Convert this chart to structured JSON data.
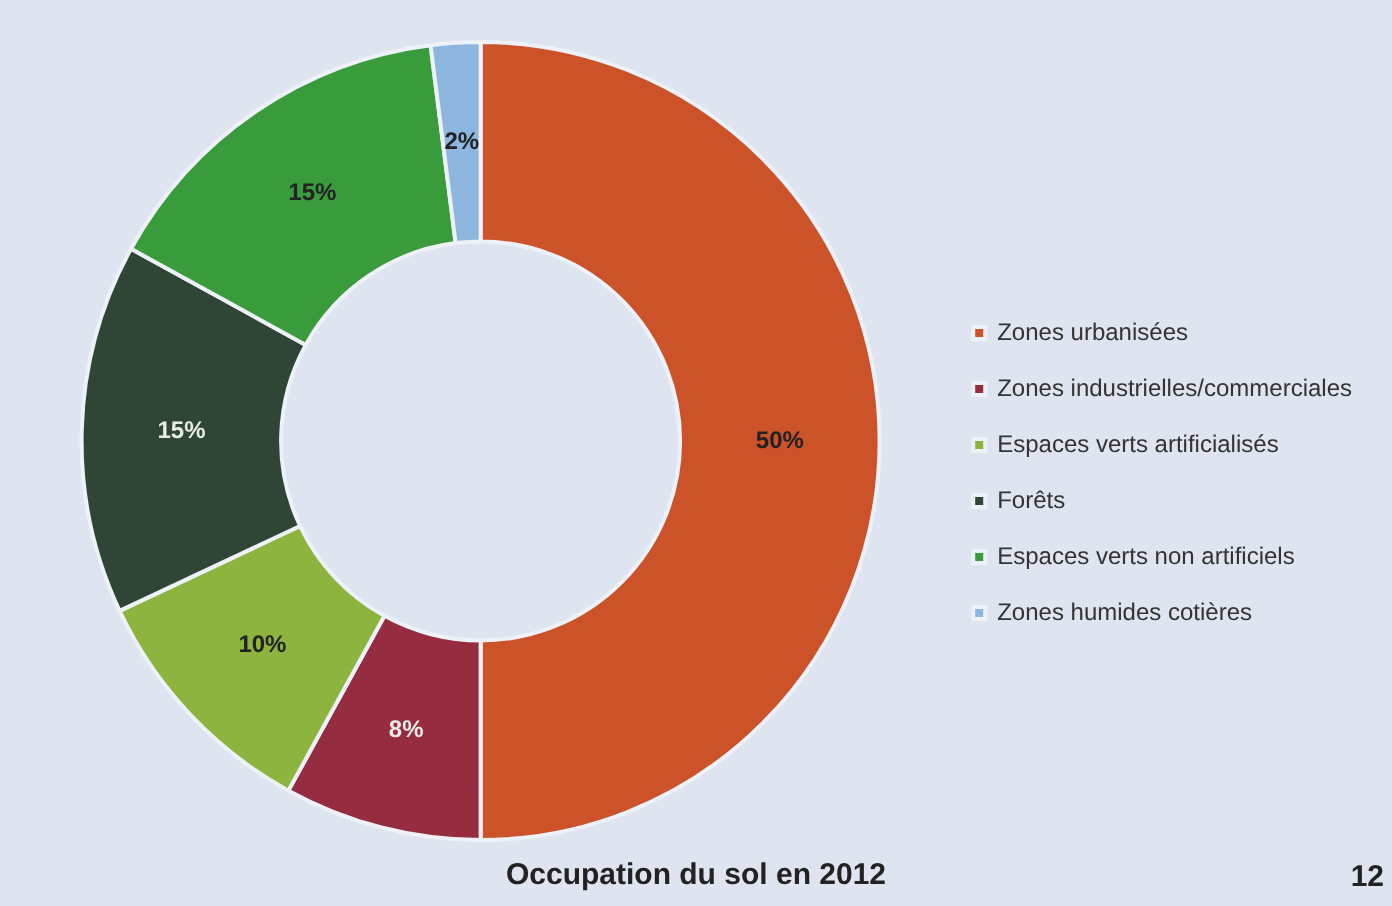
{
  "chart_data": {
    "type": "donut",
    "title": "Occupation du sol en 2012",
    "categories": [
      "Zones urbanisées",
      "Zones industrielles/commerciales",
      "Espaces verts artificialisés",
      "Forêts",
      "Espaces verts non artificiels",
      "Zones humides cotières"
    ],
    "values": [
      50,
      8,
      10,
      15,
      15,
      2
    ],
    "colors": [
      "#cc5229",
      "#962c3f",
      "#8cb43f",
      "#2f4636",
      "#3a9b3c",
      "#8db7de"
    ],
    "value_labels": [
      "50%",
      "8%",
      "10%",
      "15%",
      "15%",
      "2%"
    ],
    "legend": "right",
    "annotations": [
      "12"
    ]
  }
}
